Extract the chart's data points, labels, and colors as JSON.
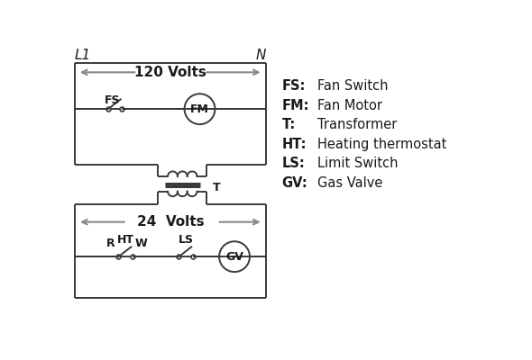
{
  "bg_color": "#ffffff",
  "line_color": "#3a3a3a",
  "arrow_color": "#888888",
  "text_color": "#1a1a1a",
  "L1_label": "L1",
  "N_label": "N",
  "v120_label": "120 Volts",
  "v24_label": "24  Volts",
  "FS_label": "FS",
  "FM_label": "FM",
  "T_label": "T",
  "HT_label": "HT",
  "LS_label": "LS",
  "GV_label": "GV",
  "R_label": "R",
  "W_label": "W",
  "legend": [
    [
      "FS:",
      "Fan Switch"
    ],
    [
      "FM:",
      "Fan Motor"
    ],
    [
      "T:",
      "Transformer"
    ],
    [
      "HT:",
      "Heating thermostat"
    ],
    [
      "LS:",
      "Limit Switch"
    ],
    [
      "GV:",
      "Gas Valve"
    ]
  ],
  "lw": 1.4,
  "lw_thick": 2.2
}
